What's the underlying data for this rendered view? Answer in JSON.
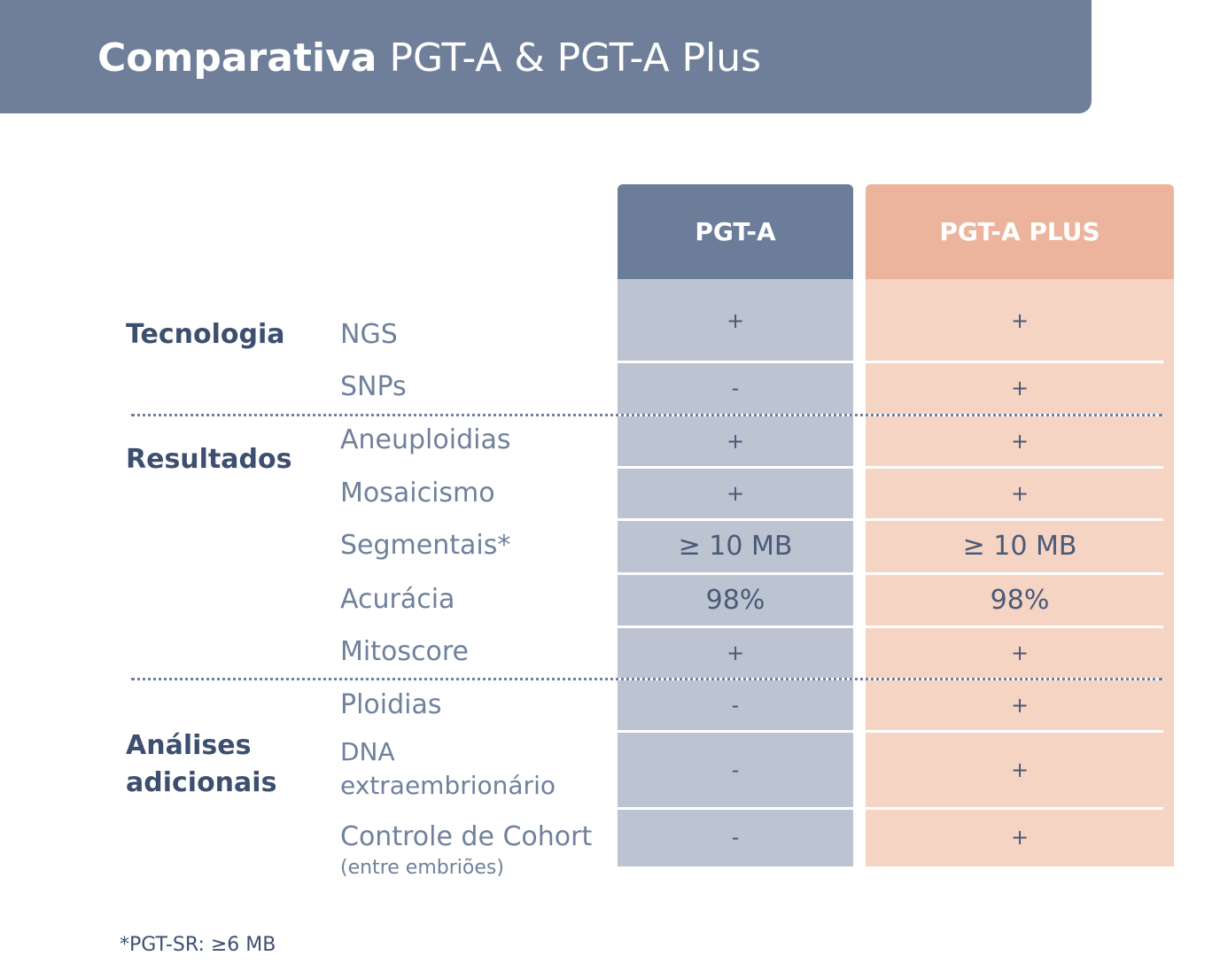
{
  "header": {
    "title_bold": "Comparativa",
    "title_rest": "PGT-A & PGT-A Plus"
  },
  "table": {
    "columns": [
      "PGT-A",
      "PGT-A PLUS"
    ],
    "groups": [
      {
        "label": "Tecnologia",
        "rows": [
          {
            "label": "NGS",
            "values": [
              "+",
              "+"
            ]
          },
          {
            "label": "SNPs",
            "values": [
              "-",
              "+"
            ]
          }
        ]
      },
      {
        "label": "Resultados",
        "rows": [
          {
            "label": "Aneuploidias",
            "values": [
              "+",
              "+"
            ]
          },
          {
            "label": "Mosaicismo",
            "values": [
              "+",
              "+"
            ]
          },
          {
            "label": "Segmentais*",
            "values": [
              "≥ 10 MB",
              "≥ 10 MB"
            ]
          },
          {
            "label": "Acurácia",
            "values": [
              "98%",
              "98%"
            ]
          },
          {
            "label": "Mitoscore",
            "values": [
              "+",
              "+"
            ]
          }
        ]
      },
      {
        "label": "Análises adicionais",
        "rows": [
          {
            "label": "Ploidias",
            "values": [
              "-",
              "+"
            ]
          },
          {
            "label": "DNA extraembrionário",
            "values": [
              "-",
              "+"
            ]
          },
          {
            "label": "Controle de Cohort",
            "note": "(entre embriões)",
            "values": [
              "-",
              "+"
            ]
          }
        ]
      }
    ]
  },
  "footnote": "*PGT-SR: ≥6 MB"
}
